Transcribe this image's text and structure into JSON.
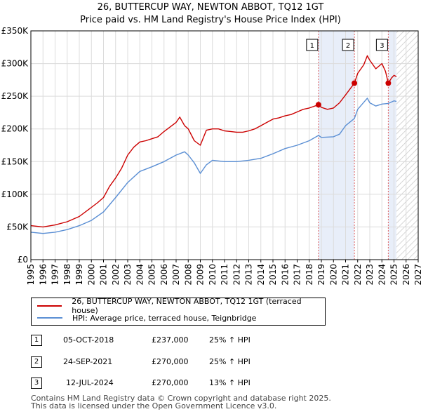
{
  "title_line1": "26, BUTTERCUP WAY, NEWTON ABBOT, TQ12 1GT",
  "title_line2": "Price paid vs. HM Land Registry's House Price Index (HPI)",
  "legend": {
    "property_label": "26, BUTTERCUP WAY, NEWTON ABBOT, TQ12 1GT (terraced house)",
    "hpi_label": "HPI: Average price, terraced house, Teignbridge"
  },
  "colors": {
    "property": "#cc0000",
    "hpi": "#5b8fd4",
    "shade": "#e8eef9",
    "marker_line": "#e06060"
  },
  "transactions": [
    {
      "num": "1",
      "date": "05-OCT-2018",
      "price": "£237,000",
      "hpi": "25% ↑ HPI"
    },
    {
      "num": "2",
      "date": "24-SEP-2021",
      "price": "£270,000",
      "hpi": "25% ↑ HPI"
    },
    {
      "num": "3",
      "date": "12-JUL-2024",
      "price": "£270,000",
      "hpi": "13% ↑ HPI"
    }
  ],
  "footer": {
    "line1": "Contains HM Land Registry data © Crown copyright and database right 2025.",
    "line2": "This data is licensed under the Open Government Licence v3.0."
  },
  "chart_data": {
    "type": "line",
    "title": "26, BUTTERCUP WAY, NEWTON ABBOT, TQ12 1GT",
    "subtitle": "Price paid vs. HM Land Registry's House Price Index (HPI)",
    "xlim": [
      1995,
      2027
    ],
    "ylim": [
      0,
      350000
    ],
    "x_ticks": [
      "1995",
      "1996",
      "1997",
      "1998",
      "1999",
      "2000",
      "2001",
      "2002",
      "2003",
      "2004",
      "2005",
      "2006",
      "2007",
      "2008",
      "2009",
      "2010",
      "2011",
      "2012",
      "2013",
      "2014",
      "2015",
      "2016",
      "2017",
      "2018",
      "2019",
      "2020",
      "2021",
      "2022",
      "2023",
      "2024",
      "2025",
      "2026",
      "2027"
    ],
    "y_ticks": [
      {
        "value": 0,
        "label": "£0"
      },
      {
        "value": 50000,
        "label": "£50K"
      },
      {
        "value": 100000,
        "label": "£100K"
      },
      {
        "value": 150000,
        "label": "£150K"
      },
      {
        "value": 200000,
        "label": "£200K"
      },
      {
        "value": 250000,
        "label": "£250K"
      },
      {
        "value": 300000,
        "label": "£300K"
      },
      {
        "value": 350000,
        "label": "£350K"
      }
    ],
    "grid": true,
    "future_hatch_from": 2025.2,
    "shaded_ranges": [
      [
        2018.76,
        2021.73
      ],
      [
        2024.53,
        2025.2
      ]
    ],
    "sales": [
      {
        "label": "1",
        "x": 2018.76,
        "y": 237000
      },
      {
        "label": "2",
        "x": 2021.73,
        "y": 270000
      },
      {
        "label": "3",
        "x": 2024.53,
        "y": 270000
      }
    ],
    "series": [
      {
        "name": "26, BUTTERCUP WAY, NEWTON ABBOT, TQ12 1GT (terraced house)",
        "color": "#cc0000",
        "points": [
          [
            1995,
            52000
          ],
          [
            1996,
            50000
          ],
          [
            1997,
            53000
          ],
          [
            1998,
            58000
          ],
          [
            1999,
            66000
          ],
          [
            2000,
            80000
          ],
          [
            2000.5,
            87000
          ],
          [
            2001,
            95000
          ],
          [
            2001.5,
            112000
          ],
          [
            2002,
            125000
          ],
          [
            2002.5,
            140000
          ],
          [
            2003,
            160000
          ],
          [
            2003.5,
            172000
          ],
          [
            2004,
            180000
          ],
          [
            2004.5,
            182000
          ],
          [
            2005,
            185000
          ],
          [
            2005.5,
            188000
          ],
          [
            2006,
            196000
          ],
          [
            2006.5,
            203000
          ],
          [
            2007,
            210000
          ],
          [
            2007.3,
            218000
          ],
          [
            2007.7,
            205000
          ],
          [
            2008,
            200000
          ],
          [
            2008.5,
            182000
          ],
          [
            2009,
            175000
          ],
          [
            2009.5,
            198000
          ],
          [
            2010,
            200000
          ],
          [
            2010.5,
            200000
          ],
          [
            2011,
            197000
          ],
          [
            2011.5,
            196000
          ],
          [
            2012,
            195000
          ],
          [
            2012.5,
            195000
          ],
          [
            2013,
            197000
          ],
          [
            2013.5,
            200000
          ],
          [
            2014,
            205000
          ],
          [
            2014.5,
            210000
          ],
          [
            2015,
            215000
          ],
          [
            2015.5,
            217000
          ],
          [
            2016,
            220000
          ],
          [
            2016.5,
            222000
          ],
          [
            2017,
            226000
          ],
          [
            2017.5,
            230000
          ],
          [
            2018,
            232000
          ],
          [
            2018.76,
            237000
          ],
          [
            2019,
            233000
          ],
          [
            2019.5,
            230000
          ],
          [
            2020,
            232000
          ],
          [
            2020.5,
            240000
          ],
          [
            2021,
            252000
          ],
          [
            2021.73,
            270000
          ],
          [
            2022,
            285000
          ],
          [
            2022.5,
            298000
          ],
          [
            2022.8,
            312000
          ],
          [
            2023,
            305000
          ],
          [
            2023.5,
            292000
          ],
          [
            2024,
            300000
          ],
          [
            2024.3,
            288000
          ],
          [
            2024.53,
            270000
          ],
          [
            2024.8,
            278000
          ],
          [
            2025,
            282000
          ],
          [
            2025.2,
            280000
          ]
        ]
      },
      {
        "name": "HPI: Average price, terraced house, Teignbridge",
        "color": "#5b8fd4",
        "points": [
          [
            1995,
            42000
          ],
          [
            1996,
            40000
          ],
          [
            1997,
            42000
          ],
          [
            1998,
            46000
          ],
          [
            1999,
            52000
          ],
          [
            2000,
            60000
          ],
          [
            2001,
            73000
          ],
          [
            2002,
            95000
          ],
          [
            2003,
            118000
          ],
          [
            2004,
            135000
          ],
          [
            2005,
            142000
          ],
          [
            2006,
            150000
          ],
          [
            2007,
            160000
          ],
          [
            2007.7,
            165000
          ],
          [
            2008,
            160000
          ],
          [
            2008.5,
            148000
          ],
          [
            2009,
            132000
          ],
          [
            2009.5,
            145000
          ],
          [
            2010,
            152000
          ],
          [
            2011,
            150000
          ],
          [
            2012,
            150000
          ],
          [
            2013,
            152000
          ],
          [
            2014,
            155000
          ],
          [
            2015,
            162000
          ],
          [
            2016,
            170000
          ],
          [
            2017,
            175000
          ],
          [
            2018,
            182000
          ],
          [
            2018.76,
            190000
          ],
          [
            2019,
            187000
          ],
          [
            2020,
            188000
          ],
          [
            2020.5,
            192000
          ],
          [
            2021,
            205000
          ],
          [
            2021.73,
            216000
          ],
          [
            2022,
            230000
          ],
          [
            2022.8,
            247000
          ],
          [
            2023,
            240000
          ],
          [
            2023.5,
            235000
          ],
          [
            2024,
            238000
          ],
          [
            2024.53,
            239000
          ],
          [
            2025,
            243000
          ],
          [
            2025.2,
            242000
          ]
        ]
      }
    ]
  }
}
